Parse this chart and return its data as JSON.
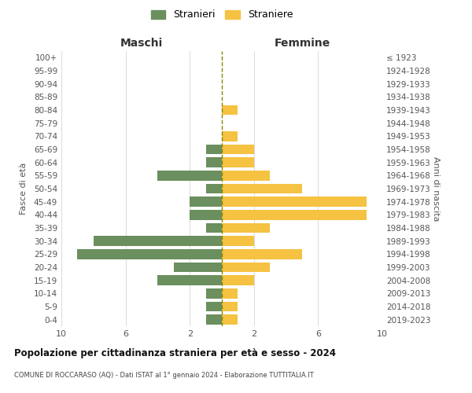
{
  "age_groups": [
    "0-4",
    "5-9",
    "10-14",
    "15-19",
    "20-24",
    "25-29",
    "30-34",
    "35-39",
    "40-44",
    "45-49",
    "50-54",
    "55-59",
    "60-64",
    "65-69",
    "70-74",
    "75-79",
    "80-84",
    "85-89",
    "90-94",
    "95-99",
    "100+"
  ],
  "birth_years": [
    "2019-2023",
    "2014-2018",
    "2009-2013",
    "2004-2008",
    "1999-2003",
    "1994-1998",
    "1989-1993",
    "1984-1988",
    "1979-1983",
    "1974-1978",
    "1969-1973",
    "1964-1968",
    "1959-1963",
    "1954-1958",
    "1949-1953",
    "1944-1948",
    "1939-1943",
    "1934-1938",
    "1929-1933",
    "1924-1928",
    "≤ 1923"
  ],
  "males": [
    1,
    1,
    1,
    4,
    3,
    9,
    8,
    1,
    2,
    2,
    1,
    4,
    1,
    1,
    0,
    0,
    0,
    0,
    0,
    0,
    0
  ],
  "females": [
    1,
    1,
    1,
    2,
    3,
    5,
    2,
    3,
    9,
    9,
    5,
    3,
    2,
    2,
    1,
    0,
    1,
    0,
    0,
    0,
    0
  ],
  "male_color": "#6b8f5e",
  "female_color": "#f5c242",
  "center_line_color": "#888800",
  "title": "Popolazione per cittadinanza straniera per età e sesso - 2024",
  "subtitle": "COMUNE DI ROCCARASO (AQ) - Dati ISTAT al 1° gennaio 2024 - Elaborazione TUTTITALIA.IT",
  "ylabel_left": "Fasce di età",
  "ylabel_right": "Anni di nascita",
  "xlabel_left": "Maschi",
  "xlabel_right": "Femmine",
  "legend_male": "Stranieri",
  "legend_female": "Straniere",
  "xlim": 10,
  "background_color": "#ffffff",
  "grid_color": "#cccccc"
}
